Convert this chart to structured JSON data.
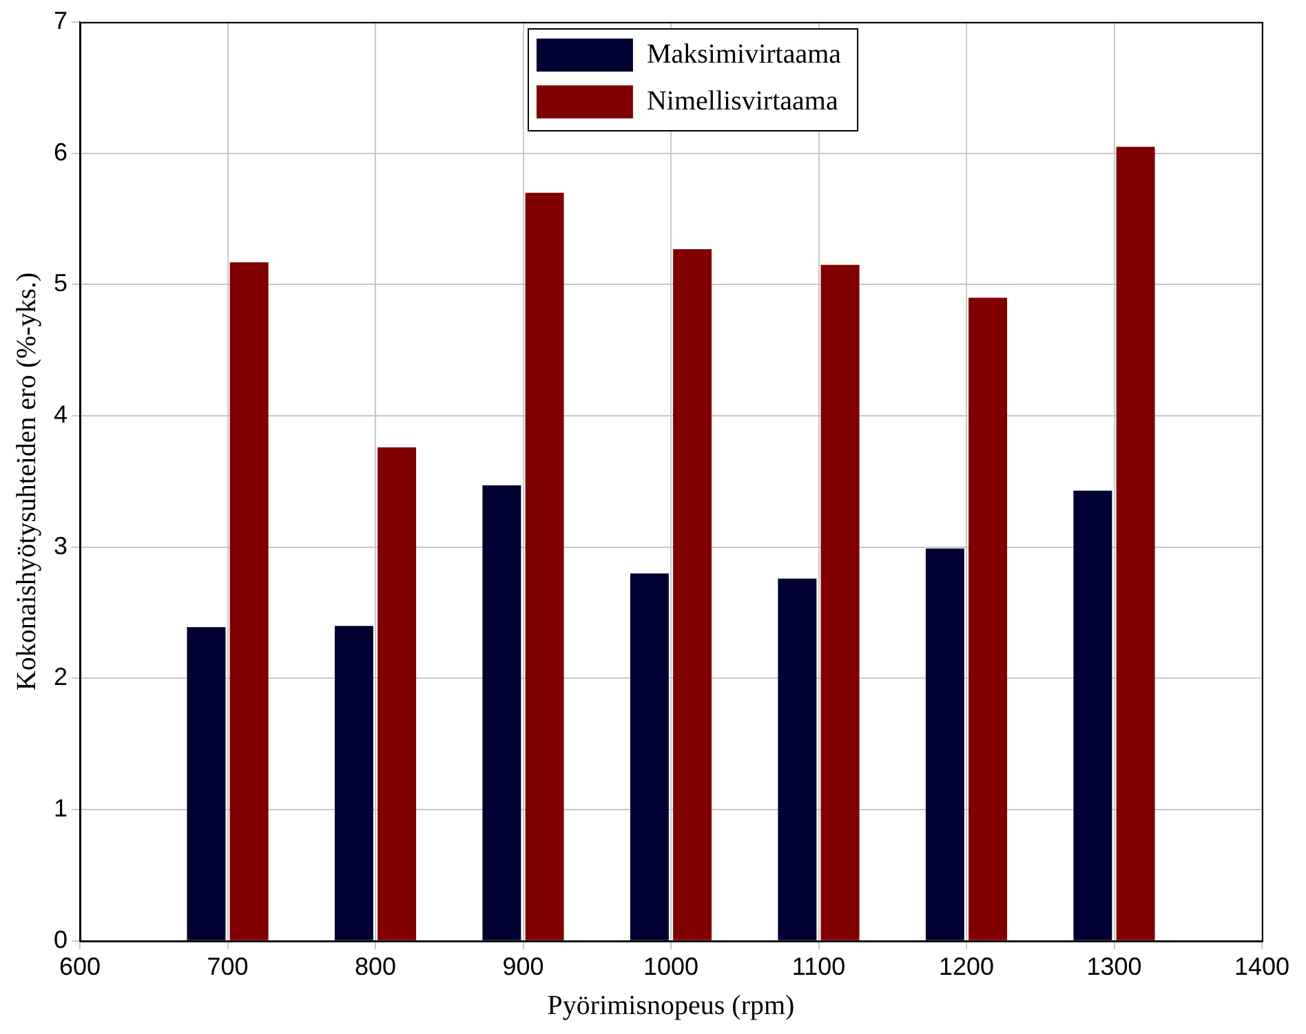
{
  "chart_data": {
    "type": "bar",
    "xlabel": "Pyörimisnopeus (rpm)",
    "ylabel": "Kokonaishyötysuhteiden ero (%-yks.)",
    "x": [
      700,
      800,
      900,
      1000,
      1100,
      1200,
      1300
    ],
    "series": [
      {
        "name": "Maksimivirtaama",
        "color": "#000033",
        "values": [
          2.39,
          2.4,
          3.47,
          2.8,
          2.76,
          2.99,
          3.43
        ]
      },
      {
        "name": "Nimellisvirtaama",
        "color": "#800000",
        "values": [
          5.17,
          3.76,
          5.7,
          5.27,
          5.15,
          4.9,
          6.05
        ]
      }
    ],
    "xlim": [
      600,
      1400
    ],
    "xticks": [
      600,
      700,
      800,
      900,
      1000,
      1100,
      1200,
      1300,
      1400
    ],
    "ylim": [
      0,
      7
    ],
    "yticks": [
      0,
      1,
      2,
      3,
      4,
      5,
      6,
      7
    ],
    "grid": true,
    "legend": "top"
  }
}
